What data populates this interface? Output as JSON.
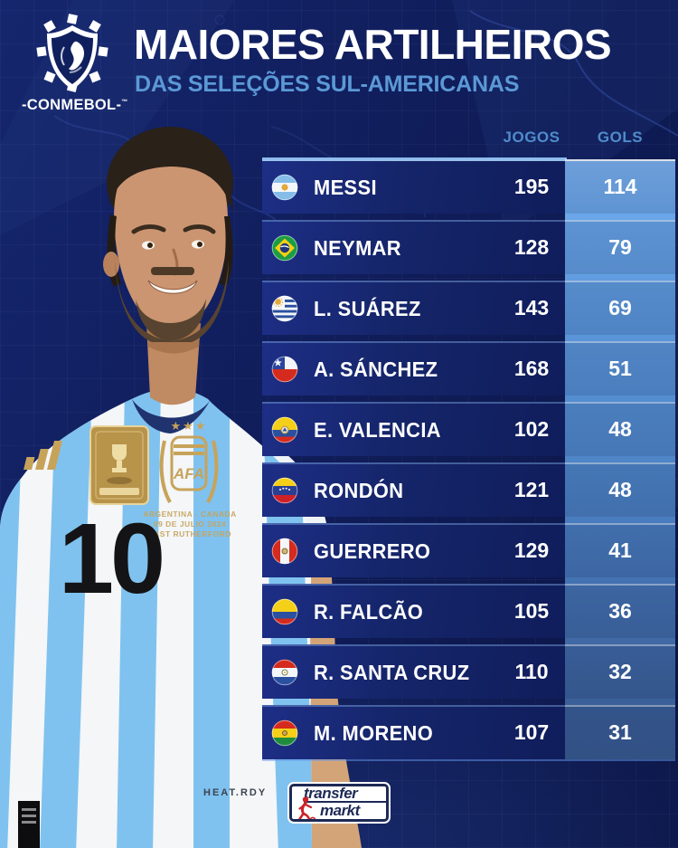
{
  "header": {
    "org": "CONMEBOL",
    "org_display": "-CONMEBOL-",
    "title": "MAIORES ARTILHEIROS",
    "subtitle": "DAS SELEÇÕES SUL-AMERICANAS"
  },
  "table": {
    "columns": {
      "games": "JOGOS",
      "goals": "GOLS"
    },
    "rows": [
      {
        "player": "MESSI",
        "flag": "argentina",
        "country": "Argentina",
        "games": 195,
        "goals": 114
      },
      {
        "player": "NEYMAR",
        "flag": "brazil",
        "country": "Brazil",
        "games": 128,
        "goals": 79
      },
      {
        "player": "L. SUÁREZ",
        "flag": "uruguay",
        "country": "Uruguay",
        "games": 143,
        "goals": 69
      },
      {
        "player": "A. SÁNCHEZ",
        "flag": "chile",
        "country": "Chile",
        "games": 168,
        "goals": 51
      },
      {
        "player": "E. VALENCIA",
        "flag": "ecuador",
        "country": "Ecuador",
        "games": 102,
        "goals": 48
      },
      {
        "player": "RONDÓN",
        "flag": "venezuela",
        "country": "Venezuela",
        "games": 121,
        "goals": 48
      },
      {
        "player": "GUERRERO",
        "flag": "peru",
        "country": "Peru",
        "games": 129,
        "goals": 41
      },
      {
        "player": "R. FALCÃO",
        "flag": "colombia",
        "country": "Colombia",
        "games": 105,
        "goals": 36
      },
      {
        "player": "R. SANTA CRUZ",
        "flag": "paraguay",
        "country": "Paraguay",
        "games": 110,
        "goals": 32
      },
      {
        "player": "M. MORENO",
        "flag": "bolivia",
        "country": "Bolivia",
        "games": 107,
        "goals": 31
      }
    ]
  },
  "photo": {
    "jersey_number": "10",
    "crest_label": "AFA",
    "crest_stars": "★★★",
    "match_lines": [
      "ARGENTINA - CANADA",
      "09 DE JULIO 2024",
      "EAST RUTHERFORD"
    ],
    "jersey_tech_label": "HEAT.RDY"
  },
  "footer": {
    "brand_line1": "transfer",
    "brand_line2": "markt"
  },
  "colors": {
    "background_navy": "#101d5a",
    "row_navy": "#152569",
    "goals_column_top": "#7cb3f2",
    "goals_column_bottom": "#385a90",
    "title_color": "#ffffff",
    "subtitle_color": "#5b99d6",
    "column_label_color": "#4f8ccc",
    "gold_accent": "#c7a35a",
    "brand_navy": "#1d2a55",
    "brand_red": "#cc2229"
  },
  "chart_data": {
    "type": "table",
    "title": "MAIORES ARTILHEIROS",
    "subtitle": "DAS SELEÇÕES SUL-AMERICANAS",
    "columns": [
      "JOGOS",
      "GOLS"
    ],
    "rows": [
      [
        "MESSI",
        195,
        114
      ],
      [
        "NEYMAR",
        128,
        79
      ],
      [
        "L. SUÁREZ",
        143,
        69
      ],
      [
        "A. SÁNCHEZ",
        168,
        51
      ],
      [
        "E. VALENCIA",
        102,
        48
      ],
      [
        "RONDÓN",
        121,
        48
      ],
      [
        "GUERRERO",
        129,
        41
      ],
      [
        "R. FALCÃO",
        105,
        36
      ],
      [
        "R. SANTA CRUZ",
        110,
        32
      ],
      [
        "M. MORENO",
        107,
        31
      ]
    ]
  }
}
